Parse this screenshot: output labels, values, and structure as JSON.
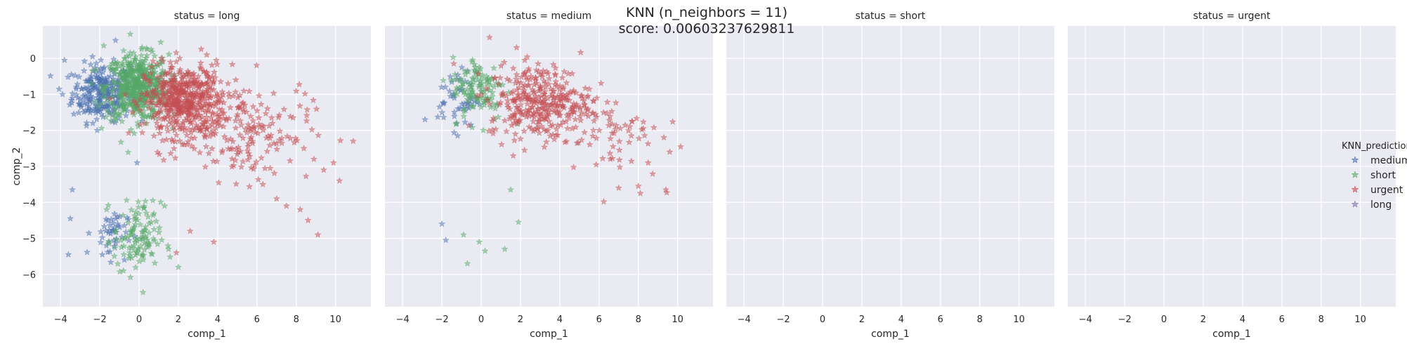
{
  "figure": {
    "title_line1": "KNN (n_neighbors = 11)",
    "title_line2": "score: 0.00603237629811"
  },
  "legend": {
    "title": "KNN_prediction",
    "entries": [
      {
        "label": "medium",
        "color": "#4c72b0"
      },
      {
        "label": "short",
        "color": "#55a868"
      },
      {
        "label": "urgent",
        "color": "#c44e52"
      },
      {
        "label": "long",
        "color": "#8172b2"
      }
    ]
  },
  "colors": {
    "axes_bg": "#eaeaf2",
    "grid": "#ffffff",
    "text": "#262626"
  },
  "chart_data": {
    "type": "scatter",
    "marker": "star",
    "xlabel": "comp_1",
    "ylabel": "comp_2",
    "xlim": [
      -4.9,
      11.8
    ],
    "ylim": [
      -6.9,
      0.9
    ],
    "xticks": [
      -4,
      -2,
      0,
      2,
      4,
      6,
      8,
      10
    ],
    "yticks": [
      0,
      -1,
      -2,
      -3,
      -4,
      -5,
      -6
    ],
    "grid": true,
    "facets": [
      {
        "title": "status = long",
        "clusters": [
          {
            "series": "medium",
            "cx": -1.9,
            "cy": -0.95,
            "sx": 0.75,
            "sy": 0.4,
            "n": 260
          },
          {
            "series": "short",
            "cx": -0.1,
            "cy": -0.8,
            "sx": 0.8,
            "sy": 0.45,
            "n": 520
          },
          {
            "series": "urgent",
            "cx": 2.3,
            "cy": -1.2,
            "sx": 1.0,
            "sy": 0.5,
            "n": 520
          },
          {
            "series": "urgent",
            "cx": 5.5,
            "cy": -2.0,
            "sx": 1.6,
            "sy": 0.7,
            "n": 170
          },
          {
            "series": "medium",
            "cx": -1.5,
            "cy": -4.85,
            "sx": 0.45,
            "sy": 0.35,
            "n": 45
          },
          {
            "series": "short",
            "cx": -0.1,
            "cy": -5.0,
            "sx": 0.6,
            "sy": 0.5,
            "n": 110
          }
        ],
        "points": [
          {
            "series": "urgent",
            "x": 7.0,
            "y": -3.9
          },
          {
            "series": "urgent",
            "x": 7.5,
            "y": -4.1
          },
          {
            "series": "urgent",
            "x": 8.2,
            "y": -4.2
          },
          {
            "series": "urgent",
            "x": 8.6,
            "y": -4.5
          },
          {
            "series": "urgent",
            "x": 9.1,
            "y": -4.9
          },
          {
            "series": "urgent",
            "x": 9.4,
            "y": -3.1
          },
          {
            "series": "urgent",
            "x": 10.2,
            "y": -3.4
          },
          {
            "series": "urgent",
            "x": 10.9,
            "y": -2.3
          },
          {
            "series": "urgent",
            "x": 8.9,
            "y": -2.8
          },
          {
            "series": "urgent",
            "x": 9.9,
            "y": -2.9
          },
          {
            "series": "urgent",
            "x": 6.3,
            "y": -3.5
          },
          {
            "series": "urgent",
            "x": 2.6,
            "y": -4.8
          },
          {
            "series": "urgent",
            "x": 3.8,
            "y": -5.1
          },
          {
            "series": "urgent",
            "x": 1.9,
            "y": -5.4
          },
          {
            "series": "urgent",
            "x": 0.9,
            "y": -1.8
          },
          {
            "series": "short",
            "x": 1.3,
            "y": -4.1
          },
          {
            "series": "short",
            "x": 2.0,
            "y": -5.8
          },
          {
            "series": "short",
            "x": 0.2,
            "y": -6.5
          },
          {
            "series": "short",
            "x": 1.5,
            "y": -5.3
          },
          {
            "series": "short",
            "x": -0.8,
            "y": -5.9
          },
          {
            "series": "medium",
            "x": -3.4,
            "y": -3.65
          },
          {
            "series": "medium",
            "x": -3.5,
            "y": -4.45
          },
          {
            "series": "medium",
            "x": -3.6,
            "y": -5.45
          },
          {
            "series": "medium",
            "x": -0.1,
            "y": -2.9
          },
          {
            "series": "medium",
            "x": -3.8,
            "y": -0.05
          },
          {
            "series": "medium",
            "x": -3.9,
            "y": -1.0
          },
          {
            "series": "short",
            "x": -1.8,
            "y": 0.35
          },
          {
            "series": "short",
            "x": 1.1,
            "y": 0.45
          },
          {
            "series": "medium",
            "x": -1.2,
            "y": 0.5
          }
        ]
      },
      {
        "title": "status = medium",
        "clusters": [
          {
            "series": "medium",
            "cx": -1.2,
            "cy": -1.1,
            "sx": 0.5,
            "sy": 0.4,
            "n": 50
          },
          {
            "series": "short",
            "cx": -0.1,
            "cy": -0.85,
            "sx": 0.7,
            "sy": 0.45,
            "n": 120
          },
          {
            "series": "urgent",
            "cx": 3.0,
            "cy": -1.2,
            "sx": 1.3,
            "sy": 0.5,
            "n": 340
          },
          {
            "series": "urgent",
            "cx": 6.5,
            "cy": -2.2,
            "sx": 1.3,
            "sy": 0.6,
            "n": 60
          }
        ],
        "points": [
          {
            "series": "medium",
            "x": -2.0,
            "y": -4.6
          },
          {
            "series": "medium",
            "x": -1.8,
            "y": -5.05
          },
          {
            "series": "short",
            "x": -0.9,
            "y": -4.9
          },
          {
            "series": "short",
            "x": -0.1,
            "y": -5.1
          },
          {
            "series": "short",
            "x": 0.2,
            "y": -5.35
          },
          {
            "series": "short",
            "x": 1.2,
            "y": -5.3
          },
          {
            "series": "short",
            "x": 1.9,
            "y": -4.55
          },
          {
            "series": "short",
            "x": -0.7,
            "y": -5.7
          },
          {
            "series": "short",
            "x": 1.5,
            "y": -3.65
          },
          {
            "series": "urgent",
            "x": 7.0,
            "y": -3.6
          },
          {
            "series": "urgent",
            "x": 8.0,
            "y": -3.55
          },
          {
            "series": "urgent",
            "x": 8.1,
            "y": -3.75
          },
          {
            "series": "urgent",
            "x": 9.4,
            "y": -3.65
          },
          {
            "series": "urgent",
            "x": 9.6,
            "y": -2.6
          },
          {
            "series": "urgent",
            "x": 9.3,
            "y": -2.2
          },
          {
            "series": "urgent",
            "x": 8.5,
            "y": -2.9
          },
          {
            "series": "urgent",
            "x": 1.8,
            "y": 0.3
          },
          {
            "series": "urgent",
            "x": 2.9,
            "y": -0.15
          },
          {
            "series": "medium",
            "x": -1.2,
            "y": -2.15
          }
        ]
      },
      {
        "title": "status = short",
        "clusters": [],
        "points": []
      },
      {
        "title": "status = urgent",
        "clusters": [],
        "points": []
      }
    ]
  }
}
